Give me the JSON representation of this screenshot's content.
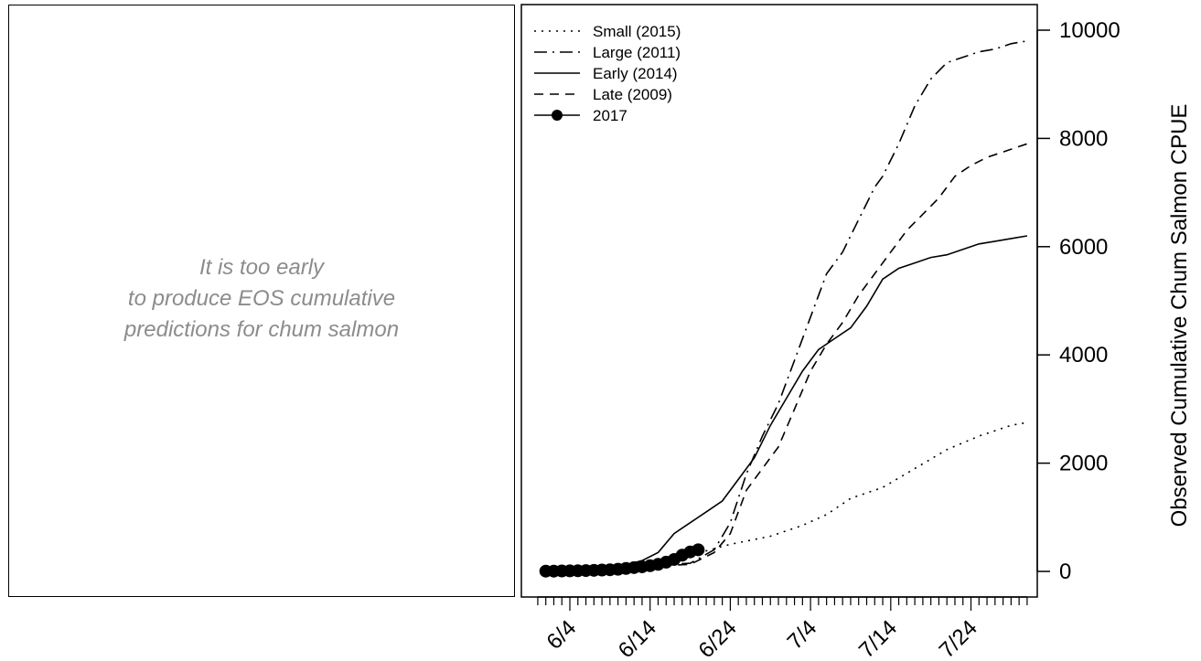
{
  "left_panel": {
    "message_lines": [
      "It is too early",
      "to produce EOS cumulative",
      "predictions for chum salmon"
    ]
  },
  "chart_data": {
    "type": "line",
    "title": "",
    "xlabel": "",
    "ylabel": "Observed Cumulative Chum Salmon CPUE",
    "x_axis": {
      "unit": "day of year",
      "tick_labels": [
        "6/4",
        "6/14",
        "6/24",
        "7/4",
        "7/14",
        "7/24"
      ],
      "tick_values": [
        155,
        165,
        175,
        185,
        195,
        205
      ],
      "range": [
        151,
        212
      ]
    },
    "y_axis": {
      "position": "right",
      "ticks": [
        0,
        2000,
        4000,
        6000,
        8000,
        10000
      ],
      "range": [
        0,
        10000
      ]
    },
    "legend": {
      "position": "top-left"
    },
    "series": [
      {
        "name": "Small (2015)",
        "style": "dotted",
        "x": [
          153,
          160,
          166,
          170,
          175,
          180,
          184,
          187,
          190,
          194,
          198,
          202,
          206,
          210,
          212
        ],
        "y": [
          0,
          40,
          150,
          300,
          500,
          650,
          850,
          1050,
          1350,
          1550,
          1900,
          2250,
          2500,
          2700,
          2750
        ]
      },
      {
        "name": "Large (2011)",
        "style": "dashdot",
        "x": [
          153,
          160,
          166,
          170,
          173,
          175,
          177,
          179,
          181,
          183,
          185,
          187,
          189,
          191,
          193,
          194,
          196,
          198,
          200,
          202,
          204,
          206,
          208,
          210,
          212
        ],
        "y": [
          0,
          40,
          120,
          150,
          400,
          900,
          1800,
          2500,
          3100,
          3900,
          4700,
          5500,
          5900,
          6500,
          7100,
          7300,
          7900,
          8600,
          9100,
          9400,
          9500,
          9600,
          9650,
          9750,
          9800
        ]
      },
      {
        "name": "Early (2014)",
        "style": "solid",
        "x": [
          153,
          160,
          164,
          166,
          168,
          170,
          172,
          174,
          176,
          178,
          180,
          182,
          184,
          186,
          188,
          190,
          192,
          194,
          196,
          198,
          200,
          202,
          204,
          206,
          208,
          210,
          212
        ],
        "y": [
          0,
          40,
          200,
          350,
          700,
          900,
          1100,
          1300,
          1700,
          2100,
          2700,
          3200,
          3700,
          4100,
          4300,
          4500,
          4900,
          5400,
          5600,
          5700,
          5800,
          5850,
          5950,
          6050,
          6100,
          6150,
          6200
        ]
      },
      {
        "name": "Late (2009)",
        "style": "dashed",
        "x": [
          153,
          160,
          166,
          170,
          173,
          175,
          177,
          179,
          181,
          183,
          185,
          187,
          189,
          191,
          193,
          195,
          197,
          199,
          201,
          203,
          205,
          207,
          209,
          211,
          212
        ],
        "y": [
          0,
          30,
          100,
          130,
          350,
          700,
          1500,
          1900,
          2300,
          3000,
          3700,
          4200,
          4600,
          5100,
          5500,
          5900,
          6300,
          6600,
          6900,
          7300,
          7500,
          7650,
          7750,
          7850,
          7900
        ]
      },
      {
        "name": "2017",
        "style": "solid-points",
        "x": [
          152,
          153,
          154,
          155,
          156,
          157,
          158,
          159,
          160,
          161,
          162,
          163,
          164,
          165,
          166,
          167,
          168,
          169,
          170,
          171
        ],
        "y": [
          5,
          5,
          8,
          10,
          12,
          15,
          20,
          25,
          30,
          40,
          55,
          70,
          85,
          105,
          130,
          170,
          220,
          300,
          360,
          400
        ]
      }
    ]
  }
}
